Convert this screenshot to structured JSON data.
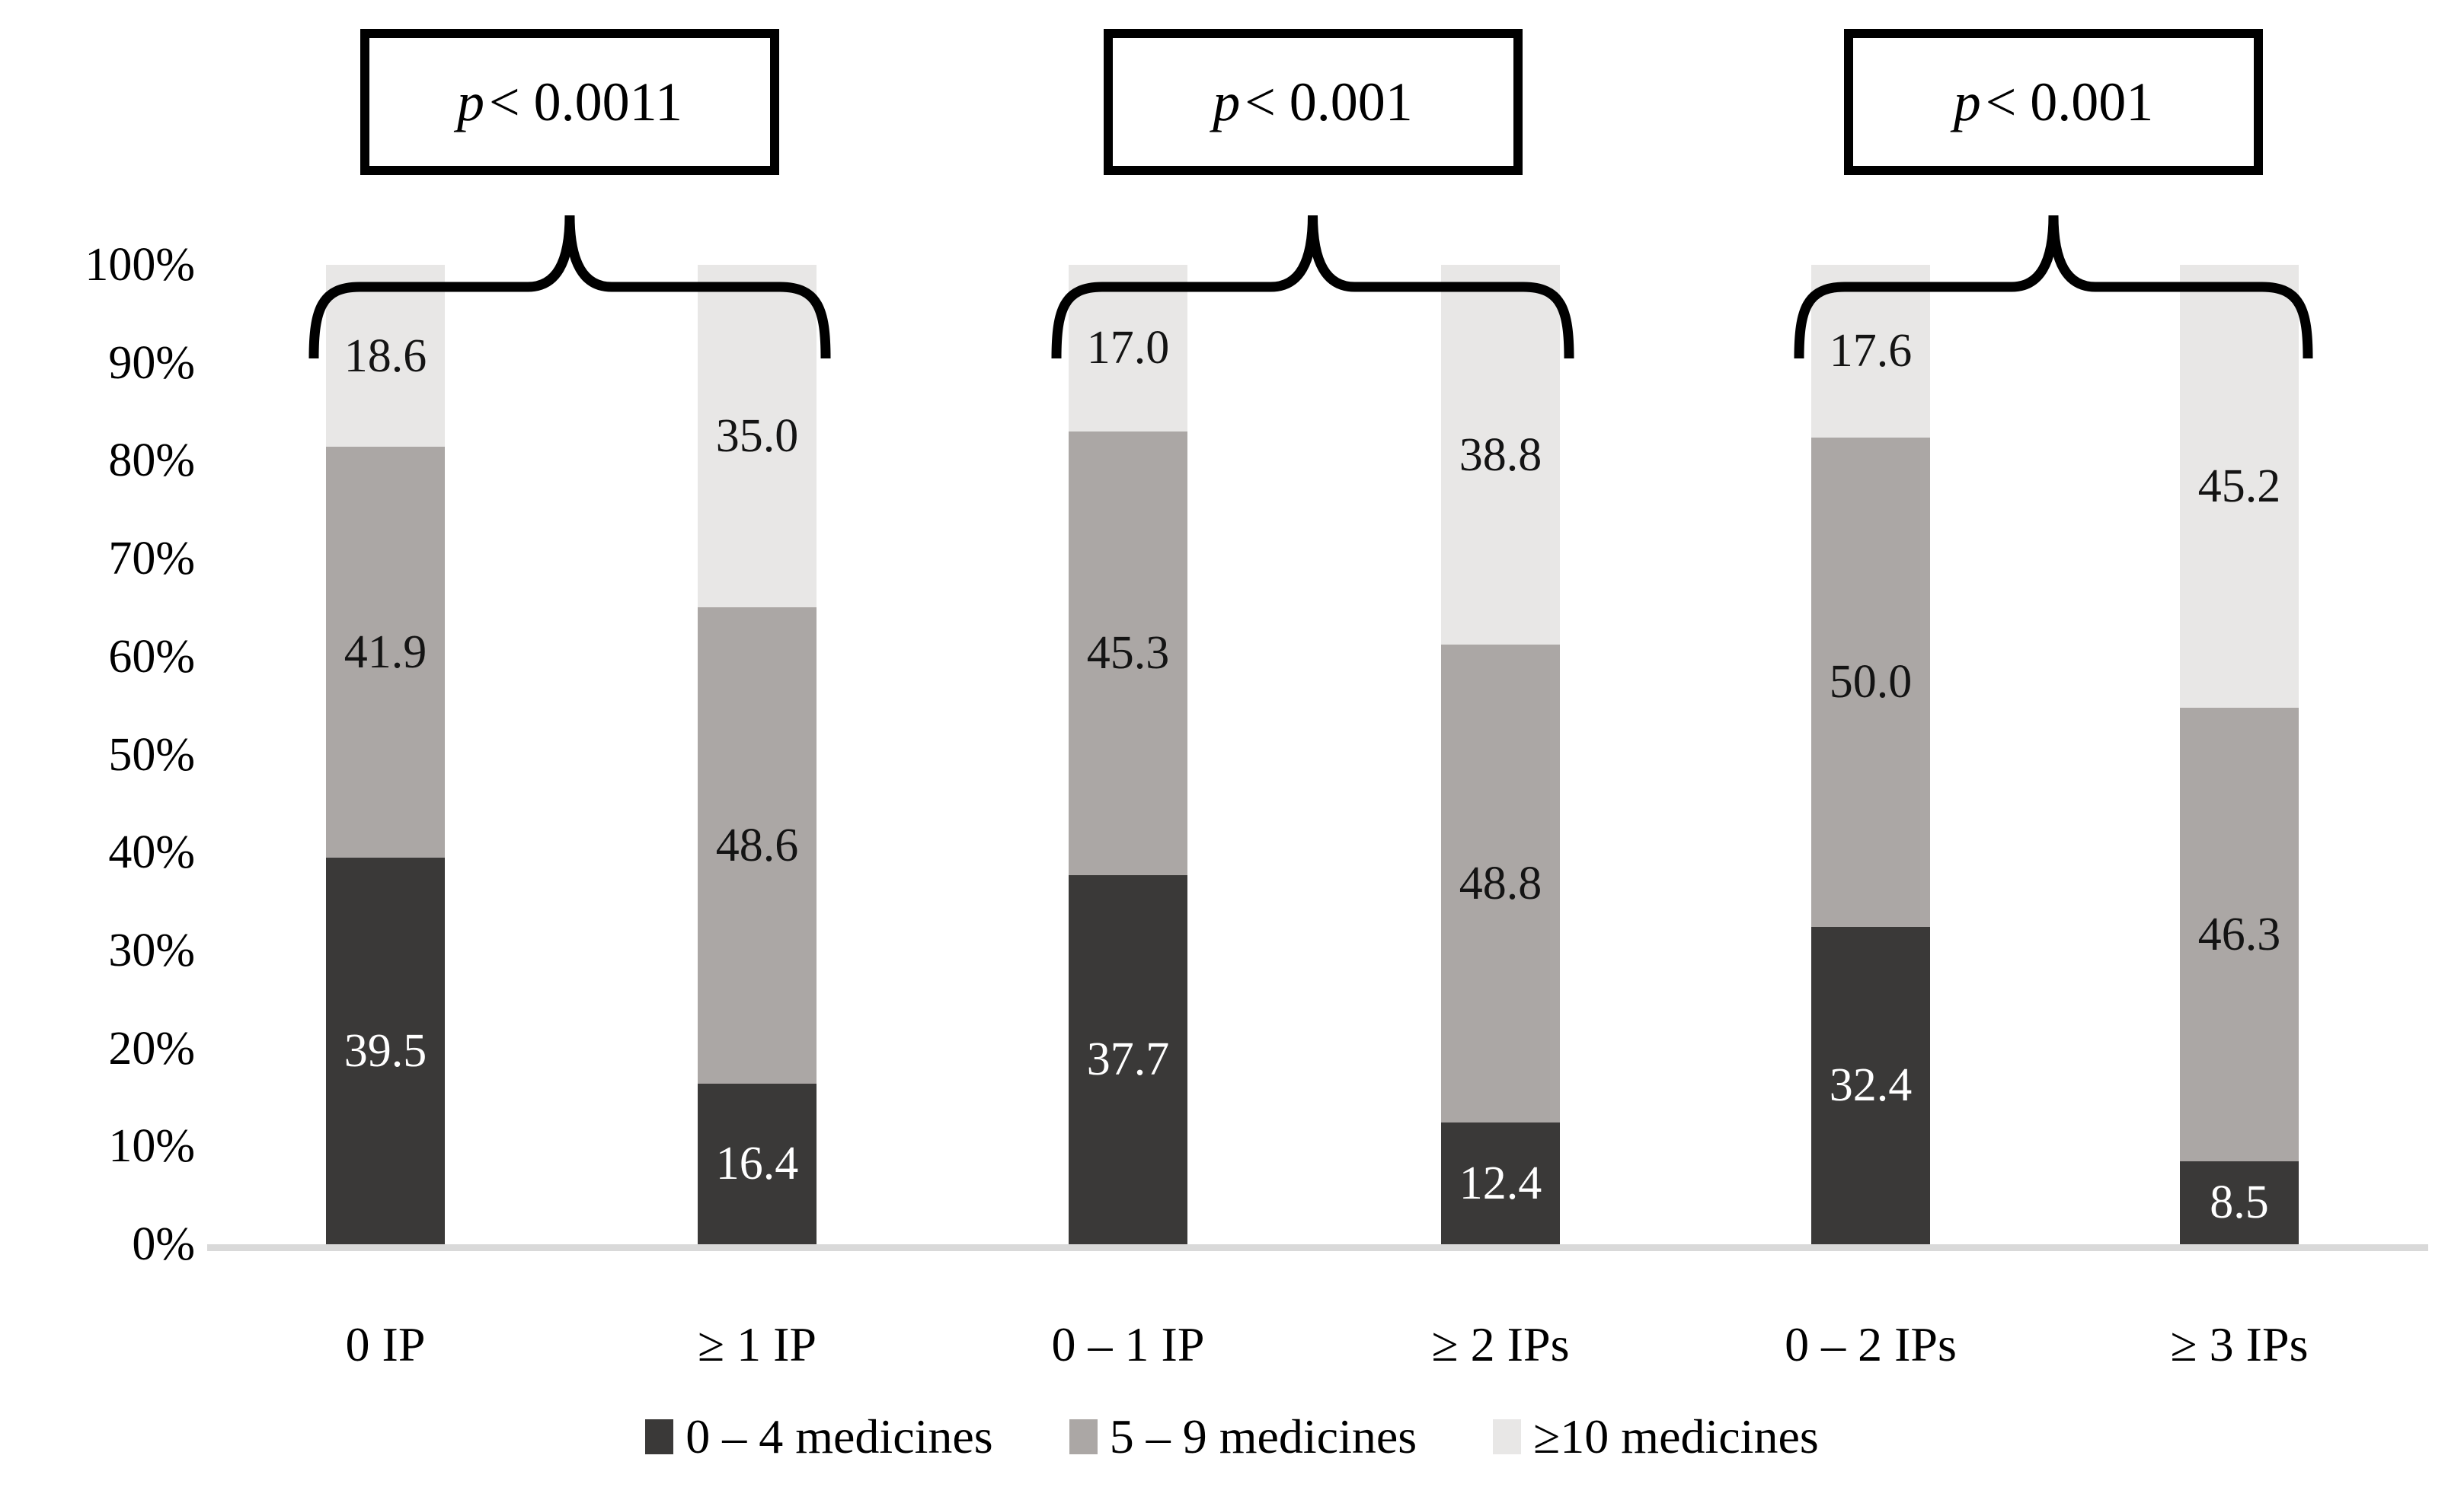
{
  "chart_data": {
    "type": "bar",
    "stacked": true,
    "title": "",
    "categories": [
      "0 IP",
      "≥ 1 IP",
      "0 – 1 IP",
      "≥ 2 IPs",
      "0 – 2 IPs",
      "≥ 3 IPs"
    ],
    "series": [
      {
        "name": "0 – 4 medicines",
        "color": "#3a3938",
        "label_color": "#ffffff",
        "values": [
          39.5,
          16.4,
          37.7,
          12.4,
          32.4,
          8.5
        ]
      },
      {
        "name": "5 – 9 medicines",
        "color": "#aba7a5",
        "label_color": "#141414",
        "values": [
          41.9,
          48.6,
          45.3,
          48.8,
          50.0,
          46.3
        ]
      },
      {
        "name": "≥10 medicines",
        "color": "#e8e7e6",
        "label_color": "#141414",
        "values": [
          18.6,
          35.0,
          17.0,
          38.8,
          17.6,
          45.2
        ]
      }
    ],
    "y_ticks": [
      "0%",
      "10%",
      "20%",
      "30%",
      "40%",
      "50%",
      "60%",
      "70%",
      "80%",
      "90%",
      "100%"
    ],
    "ylim": [
      0,
      100
    ],
    "grid": false,
    "axis_line_color": "#d9d9d9",
    "value_label_decimals": 1,
    "legend_position": "bottom",
    "annotations": [
      {
        "text": "p < 0.0011",
        "pair": [
          0,
          1
        ]
      },
      {
        "text": "p < 0.001",
        "pair": [
          2,
          3
        ]
      },
      {
        "text": "p < 0.001",
        "pair": [
          4,
          5
        ]
      }
    ]
  }
}
